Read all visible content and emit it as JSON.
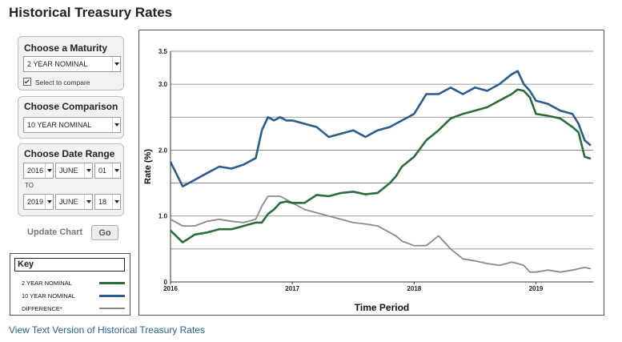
{
  "page": {
    "title": "Historical Treasury Rates"
  },
  "maturity": {
    "heading": "Choose a Maturity",
    "selected": "2 YEAR NOMINAL",
    "compare_label": "Select to compare",
    "compare_checked": true
  },
  "comparison": {
    "heading": "Choose Comparison",
    "selected": "10 YEAR NOMINAL"
  },
  "date_range": {
    "heading": "Choose Date Range",
    "from": {
      "year": "2016",
      "month": "JUNE",
      "day": "01"
    },
    "to_label": "TO",
    "to": {
      "year": "2019",
      "month": "JUNE",
      "day": "18"
    }
  },
  "update": {
    "label": "Update Chart",
    "button": "Go"
  },
  "key": {
    "title": "Key",
    "items": [
      {
        "label": "2 YEAR NOMINAL",
        "color": "#2e6b3a"
      },
      {
        "label": "10 YEAR NOMINAL",
        "color": "#2b5c8a"
      },
      {
        "label": "DIFFERENCE*",
        "color": "#8a8a8a"
      }
    ]
  },
  "chart_data": {
    "type": "line",
    "title": "",
    "xlabel": "Time Period",
    "ylabel": "Rate (%)",
    "ylim": [
      0,
      3.5
    ],
    "xlim": [
      2016.0,
      2019.47
    ],
    "yticks": [
      "0",
      "1.0",
      "2.0",
      "3.0",
      "3.5"
    ],
    "ytick_values": [
      0,
      1.0,
      2.0,
      3.0,
      3.5
    ],
    "gridlines_at": [
      0.5,
      1.0,
      1.5,
      2.0,
      2.5,
      3.0,
      3.5
    ],
    "xticks": [
      "2016",
      "2017",
      "2018",
      "2019"
    ],
    "xtick_values": [
      2016,
      2017,
      2018,
      2019
    ],
    "grid": true,
    "series": [
      {
        "name": "2 YEAR NOMINAL",
        "color": "#2e6b3a",
        "x": [
          2016.0,
          2016.1,
          2016.2,
          2016.3,
          2016.4,
          2016.5,
          2016.6,
          2016.7,
          2016.75,
          2016.8,
          2016.85,
          2016.9,
          2016.95,
          2017.0,
          2017.1,
          2017.2,
          2017.3,
          2017.4,
          2017.5,
          2017.6,
          2017.7,
          2017.8,
          2017.85,
          2017.9,
          2018.0,
          2018.1,
          2018.2,
          2018.3,
          2018.4,
          2018.5,
          2018.6,
          2018.7,
          2018.8,
          2018.85,
          2018.9,
          2018.95,
          2019.0,
          2019.1,
          2019.2,
          2019.3,
          2019.35,
          2019.4,
          2019.45
        ],
        "values": [
          0.78,
          0.6,
          0.72,
          0.75,
          0.8,
          0.8,
          0.85,
          0.9,
          0.9,
          1.03,
          1.1,
          1.2,
          1.22,
          1.2,
          1.2,
          1.32,
          1.3,
          1.35,
          1.37,
          1.33,
          1.35,
          1.5,
          1.6,
          1.75,
          1.9,
          2.15,
          2.3,
          2.48,
          2.55,
          2.6,
          2.65,
          2.75,
          2.85,
          2.92,
          2.9,
          2.8,
          2.55,
          2.52,
          2.48,
          2.35,
          2.27,
          1.9,
          1.87
        ]
      },
      {
        "name": "10 YEAR NOMINAL",
        "color": "#2b5c8a",
        "x": [
          2016.0,
          2016.1,
          2016.2,
          2016.3,
          2016.4,
          2016.5,
          2016.6,
          2016.7,
          2016.75,
          2016.8,
          2016.85,
          2016.9,
          2016.95,
          2017.0,
          2017.1,
          2017.2,
          2017.3,
          2017.4,
          2017.5,
          2017.6,
          2017.7,
          2017.8,
          2017.85,
          2017.9,
          2018.0,
          2018.1,
          2018.2,
          2018.3,
          2018.4,
          2018.5,
          2018.6,
          2018.7,
          2018.8,
          2018.85,
          2018.9,
          2018.95,
          2019.0,
          2019.1,
          2019.2,
          2019.3,
          2019.35,
          2019.4,
          2019.45
        ],
        "values": [
          1.82,
          1.45,
          1.55,
          1.65,
          1.75,
          1.72,
          1.78,
          1.88,
          2.3,
          2.5,
          2.45,
          2.5,
          2.45,
          2.45,
          2.4,
          2.35,
          2.2,
          2.25,
          2.3,
          2.2,
          2.3,
          2.35,
          2.4,
          2.45,
          2.55,
          2.85,
          2.85,
          2.95,
          2.85,
          2.95,
          2.9,
          3.0,
          3.15,
          3.2,
          3.0,
          2.9,
          2.75,
          2.7,
          2.6,
          2.55,
          2.4,
          2.15,
          2.07
        ]
      },
      {
        "name": "DIFFERENCE*",
        "color": "#8a8a8a",
        "x": [
          2016.0,
          2016.1,
          2016.2,
          2016.3,
          2016.4,
          2016.5,
          2016.6,
          2016.7,
          2016.75,
          2016.8,
          2016.85,
          2016.9,
          2016.95,
          2017.0,
          2017.1,
          2017.2,
          2017.3,
          2017.4,
          2017.5,
          2017.6,
          2017.7,
          2017.8,
          2017.85,
          2017.9,
          2018.0,
          2018.1,
          2018.2,
          2018.3,
          2018.4,
          2018.5,
          2018.6,
          2018.7,
          2018.8,
          2018.85,
          2018.9,
          2018.95,
          2019.0,
          2019.1,
          2019.2,
          2019.3,
          2019.35,
          2019.4,
          2019.45
        ],
        "values": [
          0.95,
          0.85,
          0.85,
          0.92,
          0.95,
          0.92,
          0.9,
          0.95,
          1.15,
          1.3,
          1.3,
          1.3,
          1.25,
          1.2,
          1.1,
          1.05,
          1.0,
          0.95,
          0.9,
          0.88,
          0.85,
          0.75,
          0.7,
          0.62,
          0.55,
          0.55,
          0.7,
          0.5,
          0.35,
          0.32,
          0.28,
          0.25,
          0.3,
          0.28,
          0.25,
          0.15,
          0.15,
          0.18,
          0.15,
          0.18,
          0.2,
          0.22,
          0.2
        ]
      }
    ]
  },
  "footer": {
    "link": "View Text Version of Historical Treasury Rates"
  }
}
